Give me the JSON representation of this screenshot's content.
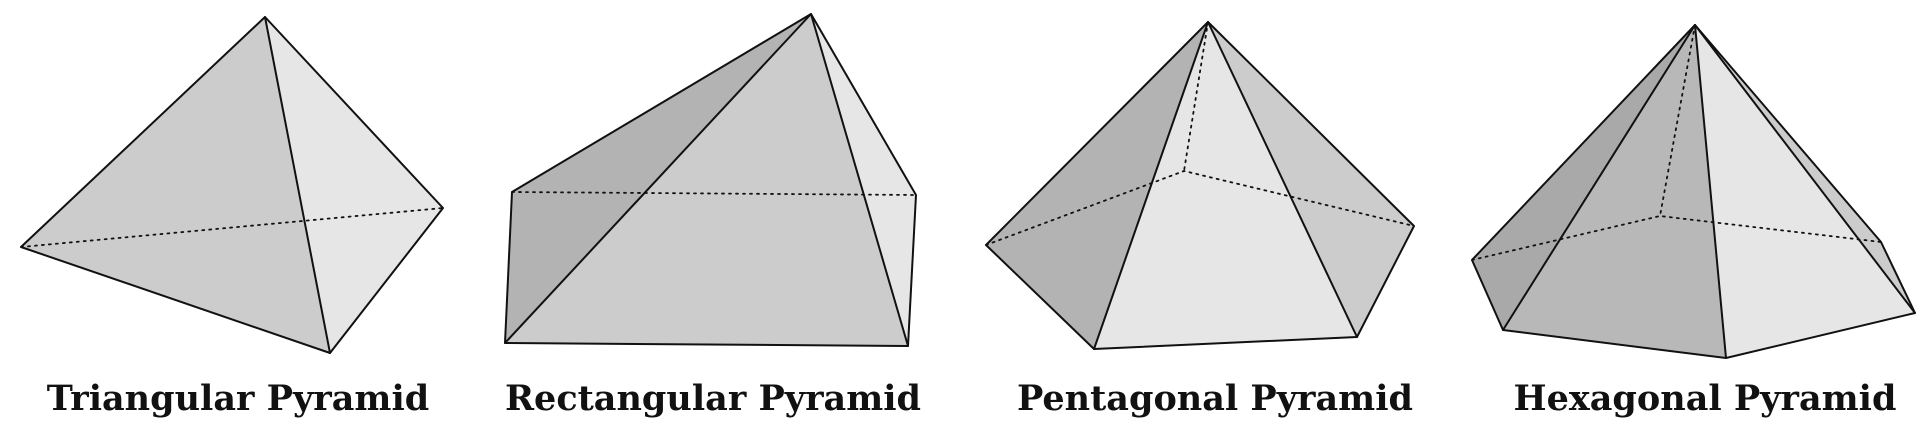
{
  "colors": {
    "background": "#ffffff",
    "edge": "#111111",
    "face_light": "#e6e6e6",
    "face_mid": "#cccccc",
    "face_dark": "#b3b3b3",
    "face_darker": "#a9a9a9"
  },
  "pyramids": [
    {
      "key": "triangular",
      "label": "Triangular Pyramid",
      "base_sides": 3
    },
    {
      "key": "rectangular",
      "label": "Rectangular Pyramid",
      "base_sides": 4
    },
    {
      "key": "pentagonal",
      "label": "Pentagonal Pyramid",
      "base_sides": 5
    },
    {
      "key": "hexagonal",
      "label": "Hexagonal Pyramid",
      "base_sides": 6
    }
  ]
}
